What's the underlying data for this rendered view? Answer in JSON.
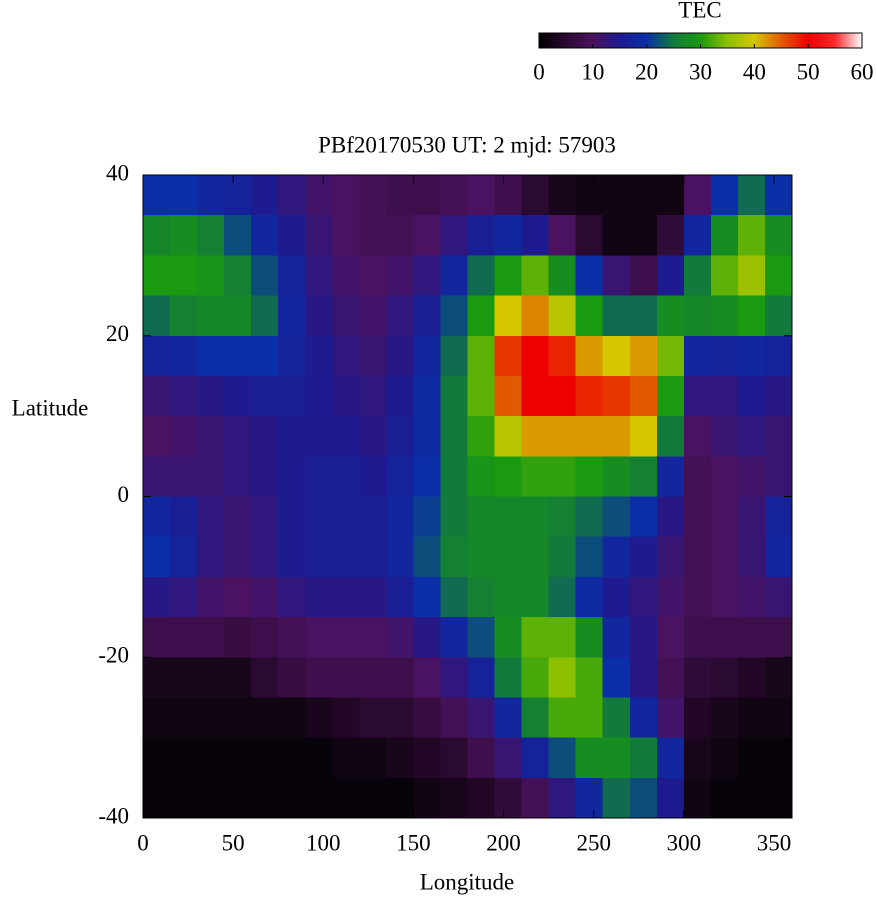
{
  "chart_data": {
    "type": "heatmap",
    "title": "PBf20170530  UT: 2  mjd: 57903",
    "x_label": "Longitude",
    "y_label": "Latitude",
    "x": [
      7.5,
      22.5,
      37.5,
      52.5,
      67.5,
      82.5,
      97.5,
      112.5,
      127.5,
      142.5,
      157.5,
      172.5,
      187.5,
      202.5,
      217.5,
      232.5,
      247.5,
      262.5,
      277.5,
      292.5,
      307.5,
      322.5,
      337.5,
      352.5
    ],
    "y": [
      37.5,
      32.5,
      27.5,
      22.5,
      17.5,
      12.5,
      7.5,
      2.5,
      -2.5,
      -7.5,
      -12.5,
      -17.5,
      -22.5,
      -27.5,
      -32.5,
      -37.5
    ],
    "z": [
      [
        20,
        20,
        18,
        17,
        15,
        13,
        11,
        10,
        9,
        8,
        8,
        9,
        10,
        8,
        5,
        3,
        2,
        2,
        2,
        2,
        10,
        20,
        24,
        20
      ],
      [
        27,
        28,
        26,
        22,
        18,
        15,
        12,
        10,
        9,
        9,
        10,
        13,
        16,
        18,
        15,
        10,
        5,
        2,
        2,
        6,
        18,
        28,
        33,
        28
      ],
      [
        30,
        30,
        29,
        26,
        22,
        17,
        13,
        11,
        10,
        11,
        13,
        18,
        24,
        30,
        33,
        28,
        20,
        12,
        8,
        15,
        25,
        33,
        36,
        30
      ],
      [
        24,
        26,
        27,
        27,
        24,
        18,
        14,
        12,
        11,
        13,
        16,
        22,
        30,
        40,
        43,
        38,
        30,
        24,
        24,
        28,
        27,
        28,
        30,
        25
      ],
      [
        17,
        18,
        20,
        20,
        20,
        17,
        15,
        13,
        12,
        14,
        18,
        24,
        33,
        47,
        50,
        48,
        42,
        40,
        42,
        34,
        18,
        17,
        18,
        17
      ],
      [
        12,
        13,
        14,
        15,
        16,
        16,
        15,
        14,
        13,
        15,
        19,
        25,
        33,
        45,
        50,
        50,
        48,
        47,
        45,
        30,
        13,
        13,
        15,
        14
      ],
      [
        10,
        11,
        12,
        13,
        14,
        15,
        15,
        15,
        14,
        16,
        19,
        25,
        31,
        38,
        42,
        42,
        42,
        42,
        40,
        25,
        10,
        12,
        13,
        12
      ],
      [
        12,
        12,
        12,
        13,
        14,
        15,
        16,
        16,
        15,
        17,
        20,
        25,
        29,
        30,
        31,
        31,
        30,
        28,
        26,
        18,
        9,
        10,
        11,
        12
      ],
      [
        18,
        16,
        13,
        12,
        13,
        15,
        16,
        16,
        16,
        18,
        21,
        25,
        27,
        27,
        27,
        26,
        24,
        22,
        20,
        14,
        9,
        10,
        12,
        17
      ],
      [
        20,
        17,
        13,
        12,
        13,
        15,
        16,
        16,
        16,
        18,
        22,
        26,
        27,
        27,
        27,
        25,
        22,
        18,
        15,
        12,
        9,
        10,
        12,
        18
      ],
      [
        14,
        13,
        11,
        10,
        11,
        13,
        14,
        14,
        14,
        16,
        20,
        24,
        26,
        27,
        27,
        24,
        19,
        15,
        13,
        11,
        9,
        10,
        11,
        12
      ],
      [
        8,
        8,
        8,
        7,
        8,
        9,
        10,
        10,
        10,
        11,
        14,
        18,
        22,
        28,
        33,
        33,
        28,
        18,
        14,
        10,
        8,
        8,
        8,
        8
      ],
      [
        3,
        3,
        3,
        3,
        5,
        7,
        8,
        8,
        8,
        8,
        10,
        13,
        17,
        25,
        32,
        35,
        32,
        20,
        14,
        9,
        6,
        5,
        4,
        3
      ],
      [
        2,
        2,
        2,
        2,
        2,
        2,
        3,
        4,
        5,
        5,
        7,
        9,
        12,
        18,
        26,
        32,
        32,
        25,
        18,
        11,
        4,
        3,
        2,
        2
      ],
      [
        1,
        1,
        1,
        1,
        1,
        1,
        1,
        2,
        2,
        3,
        4,
        5,
        8,
        12,
        17,
        22,
        28,
        28,
        25,
        18,
        3,
        2,
        1,
        1
      ],
      [
        1,
        1,
        1,
        1,
        1,
        1,
        1,
        1,
        1,
        1,
        2,
        3,
        4,
        6,
        9,
        13,
        18,
        24,
        22,
        15,
        2,
        1,
        1,
        1
      ]
    ],
    "xlim": [
      0,
      360
    ],
    "ylim": [
      -40,
      40
    ],
    "xticks": [
      0,
      50,
      100,
      150,
      200,
      250,
      300,
      350
    ],
    "yticks": [
      40,
      20,
      0,
      -20,
      -40
    ],
    "colorbar": {
      "label": "TEC",
      "lim": [
        0,
        60
      ],
      "ticks": [
        0,
        10,
        20,
        30,
        40,
        50,
        60
      ],
      "colors": [
        "#000000",
        "#2a0a30",
        "#4a1260",
        "#1e1a90",
        "#0a2fa8",
        "#127a3a",
        "#1a9a10",
        "#8cc000",
        "#d6c600",
        "#e25a00",
        "#ee0000",
        "#ff2a2a",
        "#ffffff"
      ]
    }
  }
}
